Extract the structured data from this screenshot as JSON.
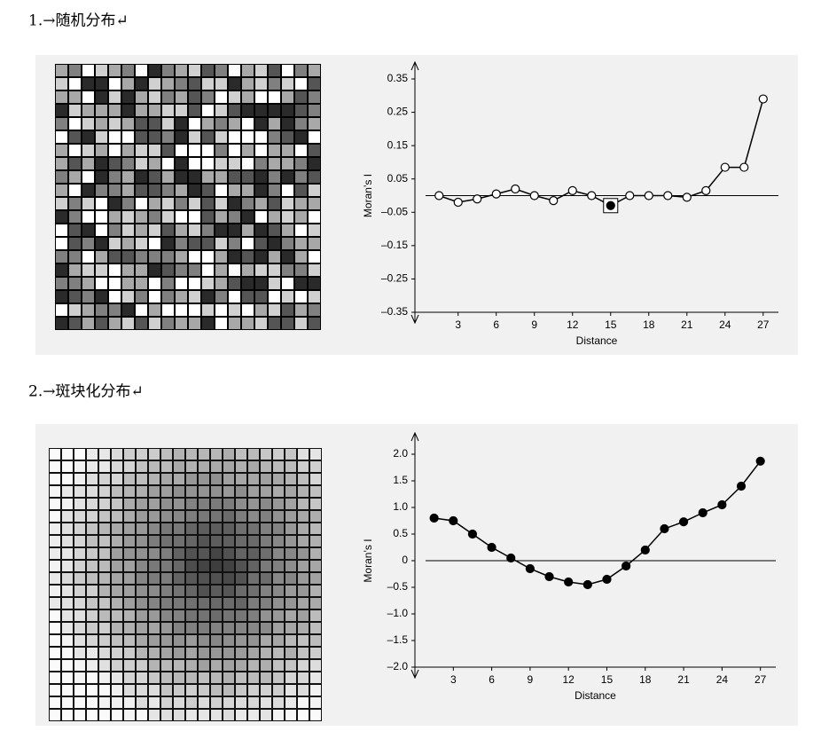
{
  "headings": [
    "1.→随机分布↵",
    "2.→斑块化分布↵"
  ],
  "chart_data": [
    {
      "type": "line",
      "ylabel": "Moran’s I",
      "xlabel": "Distance",
      "color": "#000",
      "marker_fill": "#ffffff",
      "x": [
        1.5,
        3,
        4.5,
        6,
        7.5,
        9,
        10.5,
        12,
        13.5,
        15,
        16.5,
        18,
        19.5,
        21,
        22.5,
        24,
        25.5,
        27
      ],
      "values": [
        0.0,
        -0.02,
        -0.01,
        0.005,
        0.02,
        0.0,
        -0.015,
        0.015,
        0.0,
        -0.03,
        0.0,
        0.0,
        0.0,
        -0.005,
        0.015,
        0.085,
        0.085,
        0.29
      ],
      "highlighted_points": [
        9
      ],
      "xlim": [
        -0.4,
        28.2
      ],
      "xticks": [
        3,
        6,
        9,
        12,
        15,
        18,
        21,
        24,
        27
      ],
      "ylim": [
        -0.35,
        0.35
      ],
      "yticks": [
        0.35,
        0.25,
        0.15,
        0.05,
        {
          "value": -0.05,
          "label": "–0.05"
        },
        {
          "value": -0.15,
          "label": "–0.15"
        },
        {
          "value": -0.25,
          "label": "–0.25"
        },
        {
          "value": -0.35,
          "label": "–0.35"
        }
      ]
    },
    {
      "type": "line",
      "ylabel": "Moran’s I",
      "xlabel": "Distance",
      "color": "#000",
      "marker_fill": "#000000",
      "x": [
        1.5,
        3,
        4.5,
        6,
        7.5,
        9,
        10.5,
        12,
        13.5,
        15,
        16.5,
        18,
        19.5,
        21,
        22.5,
        24,
        25.5,
        27
      ],
      "values": [
        0.8,
        0.75,
        0.5,
        0.25,
        0.05,
        -0.15,
        -0.3,
        -0.4,
        -0.45,
        -0.35,
        -0.1,
        0.2,
        0.6,
        0.73,
        0.9,
        1.05,
        1.4,
        1.87
      ],
      "highlighted_points": [],
      "xlim": [
        0,
        28.2
      ],
      "xticks": [
        3,
        6,
        9,
        12,
        15,
        18,
        21,
        24,
        27
      ],
      "ylim": [
        -2.0,
        2.0
      ],
      "yticks": [
        {
          "value": 2.0,
          "label": "2.0"
        },
        1.5,
        {
          "value": 1.0,
          "label": "1.0"
        },
        0.5,
        0,
        {
          "value": -0.5,
          "label": "–0.5"
        },
        {
          "value": -1.0,
          "label": "–1.0"
        },
        {
          "value": -1.5,
          "label": "–1.5"
        },
        {
          "value": -2.0,
          "label": "–2.0"
        }
      ]
    }
  ]
}
